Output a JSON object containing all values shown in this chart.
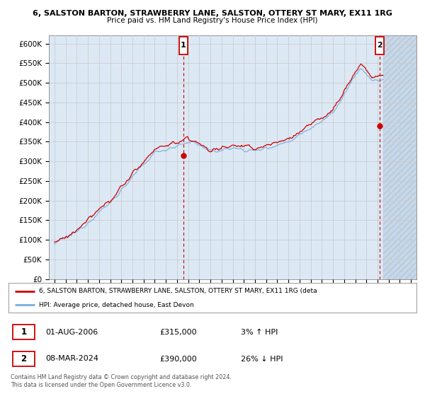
{
  "title_line1": "6, SALSTON BARTON, STRAWBERRY LANE, SALSTON, OTTERY ST MARY, EX11 1RG",
  "title_line2": "Price paid vs. HM Land Registry's House Price Index (HPI)",
  "ylabel_ticks": [
    "£0",
    "£50K",
    "£100K",
    "£150K",
    "£200K",
    "£250K",
    "£300K",
    "£350K",
    "£400K",
    "£450K",
    "£500K",
    "£550K",
    "£600K"
  ],
  "ytick_values": [
    0,
    50000,
    100000,
    150000,
    200000,
    250000,
    300000,
    350000,
    400000,
    450000,
    500000,
    550000,
    600000
  ],
  "ylim": [
    0,
    620000
  ],
  "xlim_start": 1994.5,
  "xlim_end": 2027.5,
  "hpi_color": "#7aadde",
  "price_color": "#cc0000",
  "bg_color": "#ffffff",
  "grid_color": "#cccccc",
  "plot_bg": "#dce9f5",
  "hatch_color": "#c8d8e8",
  "marker1_x": 2006.58,
  "marker1_y": 315000,
  "marker2_x": 2024.19,
  "marker2_y": 390000,
  "legend_label1": "6, SALSTON BARTON, STRAWBERRY LANE, SALSTON, OTTERY ST MARY, EX11 1RG (deta",
  "legend_label2": "HPI: Average price, detached house, East Devon",
  "table_row1": [
    "1",
    "01-AUG-2006",
    "£315,000",
    "3% ↑ HPI"
  ],
  "table_row2": [
    "2",
    "08-MAR-2024",
    "£390,000",
    "26% ↓ HPI"
  ],
  "footer": "Contains HM Land Registry data © Crown copyright and database right 2024.\nThis data is licensed under the Open Government Licence v3.0.",
  "xtick_years": [
    1995,
    1996,
    1997,
    1998,
    1999,
    2000,
    2001,
    2002,
    2003,
    2004,
    2005,
    2006,
    2007,
    2008,
    2009,
    2010,
    2011,
    2012,
    2013,
    2014,
    2015,
    2016,
    2017,
    2018,
    2019,
    2020,
    2021,
    2022,
    2023,
    2024,
    2025,
    2026,
    2027
  ]
}
